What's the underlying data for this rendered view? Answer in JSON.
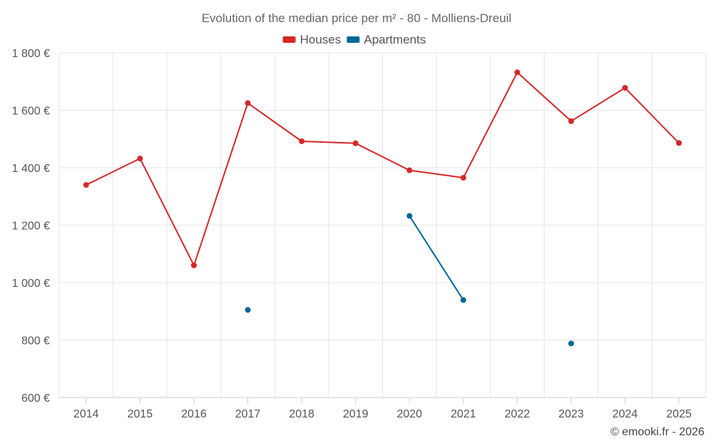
{
  "chart_data": {
    "type": "line",
    "title": "Evolution of the median price per m² - 80 - Molliens-Dreuil",
    "categories": [
      "2014",
      "2015",
      "2016",
      "2017",
      "2018",
      "2019",
      "2020",
      "2021",
      "2022",
      "2023",
      "2024",
      "2025"
    ],
    "series": [
      {
        "name": "Houses",
        "color": "#d62728",
        "values": [
          1340,
          1432,
          1060,
          1625,
          1492,
          1485,
          1391,
          1365,
          1732,
          1562,
          1678,
          1486
        ]
      },
      {
        "name": "Apartments",
        "color": "#006699",
        "values": [
          null,
          null,
          null,
          905,
          null,
          null,
          1232,
          939,
          null,
          788,
          null,
          null
        ]
      }
    ],
    "ylim": [
      600,
      1800
    ],
    "yticks": [
      600,
      800,
      1000,
      1200,
      1400,
      1600,
      1800
    ],
    "ytick_labels": [
      "600 €",
      "800 €",
      "1 000 €",
      "1 200 €",
      "1 400 €",
      "1 600 €",
      "1 800 €"
    ],
    "xlabel": "",
    "ylabel": "",
    "grid": true,
    "legend_position": "top-center"
  },
  "credit": "© emooki.fr - 2026"
}
